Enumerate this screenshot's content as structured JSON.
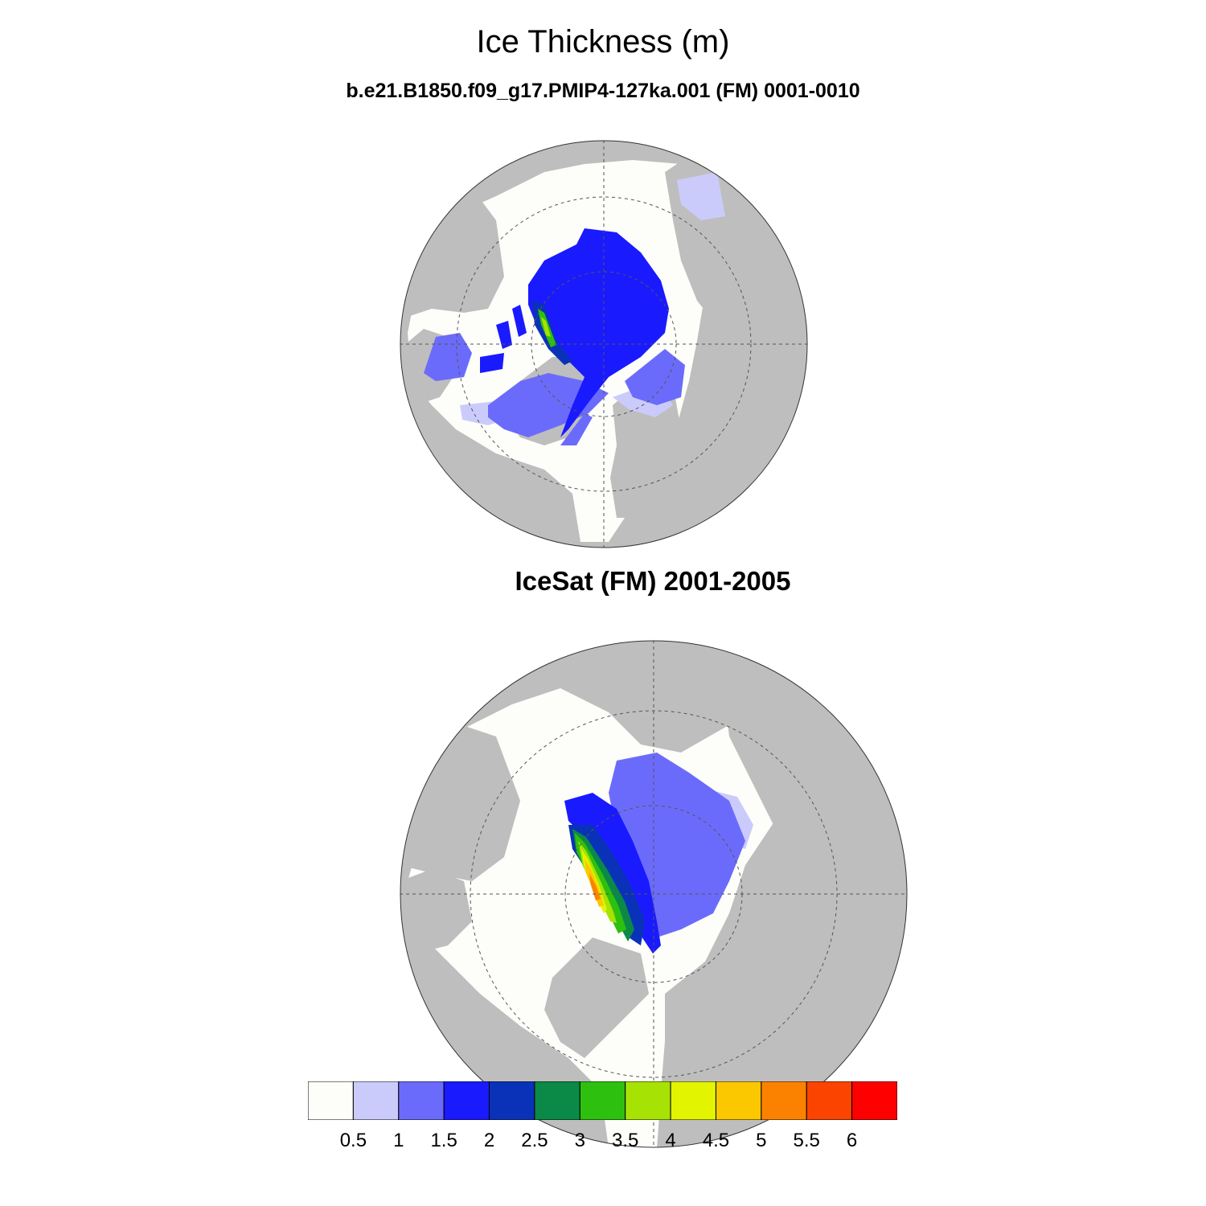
{
  "title": "Ice Thickness (m)",
  "subtitle": "b.e21.B1850.f09_g17.PMIP4-127ka.001 (FM) 0001-0010",
  "panel2_title": "IceSat (FM) 2001-2005",
  "colors": {
    "land": "#bebebe",
    "ocean_open": "#fdfdfa",
    "grid": "#555555"
  },
  "colorbar": {
    "colors": [
      "#fdfdfa",
      "#cbcbfb",
      "#6b6bfb",
      "#1a1aff",
      "#0a32b8",
      "#0a8a46",
      "#2ec00e",
      "#a7e205",
      "#e2f400",
      "#fbc800",
      "#fb8200",
      "#fb4400",
      "#ff0000"
    ],
    "labels": [
      "0.5",
      "1",
      "1.5",
      "2",
      "2.5",
      "3",
      "3.5",
      "4",
      "4.5",
      "5",
      "5.5",
      "6"
    ]
  },
  "map_projection": "north-polar-stereographic",
  "panels": [
    {
      "name": "model",
      "region": "Arctic"
    },
    {
      "name": "icesat",
      "region": "Arctic"
    }
  ]
}
